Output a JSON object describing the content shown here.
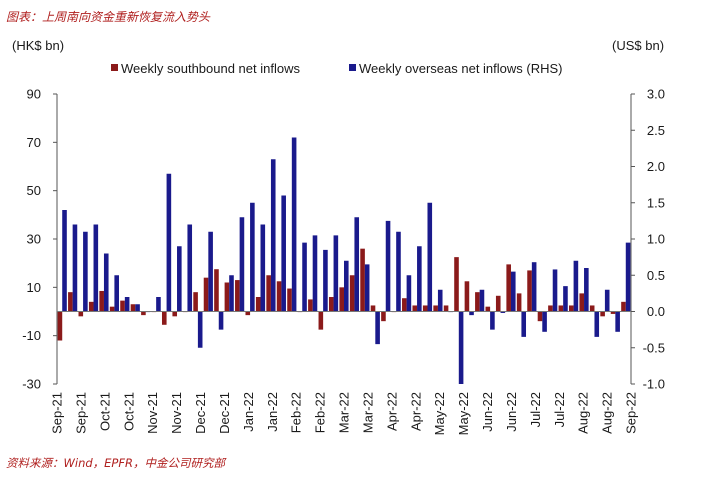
{
  "header": {
    "title": "图表：上周南向资金重新恢复流入势头"
  },
  "footer": {
    "source": "资料来源：Wind，EPFR，中金公司研究部"
  },
  "colors": {
    "southbound": "#8b1a1a",
    "overseas": "#1a1a8c",
    "title_text": "#b0201f"
  },
  "chart_data": {
    "type": "bar",
    "left_unit": "(HK$ bn)",
    "right_unit": "(US$ bn)",
    "legend_placement": "top",
    "grid": false,
    "y_left": {
      "range": [
        -30,
        90
      ],
      "ticks": [
        "90",
        "70",
        "50",
        "30",
        "10",
        "-10",
        "-30"
      ]
    },
    "y_right": {
      "range": [
        -1.0,
        3.0
      ],
      "ticks": [
        "3.0",
        "2.5",
        "2.0",
        "1.5",
        "1.0",
        "0.5",
        "0.0",
        "-0.5",
        "-1.0"
      ]
    },
    "x_tick_labels": [
      "Sep-21",
      "Sep-21",
      "Oct-21",
      "Oct-21",
      "Nov-21",
      "Nov-21",
      "Dec-21",
      "Dec-21",
      "Jan-22",
      "Jan-22",
      "Feb-22",
      "Feb-22",
      "Mar-22",
      "Mar-22",
      "Apr-22",
      "Apr-22",
      "May-22",
      "May-22",
      "Jun-22",
      "Jun-22",
      "Jul-22",
      "Jul-22",
      "Aug-22",
      "Aug-22",
      "Sep-22"
    ],
    "series": [
      {
        "name": "Weekly southbound net inflows",
        "axis": "left",
        "values": [
          -12,
          8,
          -2,
          4,
          8.5,
          2,
          4.5,
          3,
          -1.5,
          0,
          -5.5,
          -2,
          0,
          8,
          14,
          17.5,
          12,
          13,
          -1.5,
          6,
          15,
          12.5,
          9.5,
          0,
          5,
          -7.5,
          6,
          10,
          15,
          26,
          2.5,
          -4,
          0,
          5.5,
          2.5,
          2.5,
          2.5,
          2.5,
          22.5,
          12.5,
          8,
          2,
          6.5,
          19.5,
          7.5,
          17,
          -4,
          2.5,
          2.5,
          2.5,
          7.5,
          2.5,
          -2,
          -1,
          4
        ]
      },
      {
        "name": "Weekly overseas net inflows (RHS)",
        "axis": "right",
        "values": [
          1.4,
          1.2,
          1.1,
          1.2,
          0.8,
          0.5,
          0.2,
          0.1,
          0.0,
          0.2,
          1.9,
          0.9,
          1.2,
          -0.5,
          1.1,
          -0.25,
          0.5,
          1.3,
          1.5,
          1.2,
          2.1,
          1.6,
          2.4,
          0.95,
          1.05,
          0.85,
          1.05,
          0.7,
          1.3,
          0.65,
          -0.45,
          1.25,
          1.1,
          0.5,
          0.9,
          1.5,
          0.3,
          0.0,
          -1.0,
          -0.05,
          0.3,
          -0.25,
          -0.02,
          0.55,
          -0.35,
          0.68,
          -0.28,
          0.58,
          0.35,
          0.7,
          0.6,
          -0.35,
          0.3,
          -0.28,
          0.95
        ]
      }
    ]
  }
}
